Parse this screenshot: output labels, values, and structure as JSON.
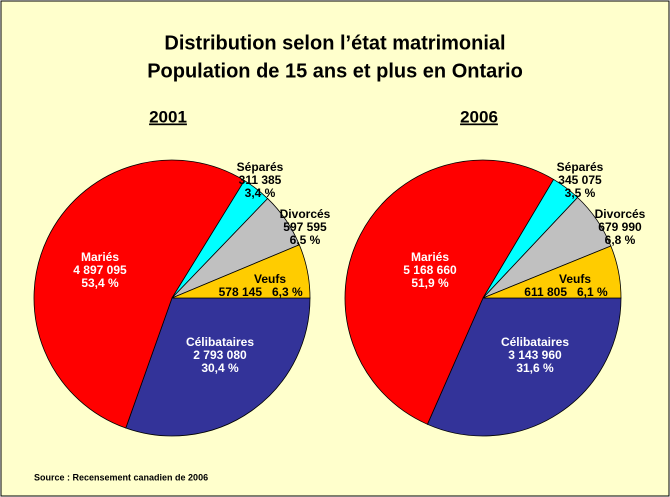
{
  "title": [
    "Distribution selon l’état matrimonial",
    "Population de 15 ans et plus en Ontario"
  ],
  "source": "Source : Recensement canadien de 2006",
  "chart_data": [
    {
      "type": "pie",
      "title": "2001",
      "categories": [
        "Célibataires",
        "Mariés",
        "Séparés",
        "Divorcés",
        "Veufs"
      ],
      "values": [
        2793080,
        4897095,
        311385,
        597595,
        578145
      ],
      "value_labels": [
        "2 793 080",
        "4 897 095",
        "311 385",
        "597 595",
        "578 145"
      ],
      "percents": [
        30.4,
        53.4,
        3.4,
        6.5,
        6.3
      ],
      "percent_labels": [
        "30,4 %",
        "53,4 %",
        "3,4 %",
        "6,5 %",
        "6,3 %"
      ],
      "colors": [
        "#333399",
        "#ff0000",
        "#00ffff",
        "#c0c0c0",
        "#ffcc00"
      ]
    },
    {
      "type": "pie",
      "title": "2006",
      "categories": [
        "Célibataires",
        "Mariés",
        "Séparés",
        "Divorcés",
        "Veufs"
      ],
      "values": [
        3143960,
        5168660,
        345075,
        679990,
        611805
      ],
      "value_labels": [
        "3 143 960",
        "5 168 660",
        "345 075",
        "679 990",
        "611 805"
      ],
      "percents": [
        31.6,
        51.9,
        3.5,
        6.8,
        6.1
      ],
      "percent_labels": [
        "31,6 %",
        "51,9 %",
        "3,5 %",
        "6,8 %",
        "6,1 %"
      ],
      "colors": [
        "#333399",
        "#ff0000",
        "#00ffff",
        "#c0c0c0",
        "#ffcc00"
      ]
    }
  ]
}
